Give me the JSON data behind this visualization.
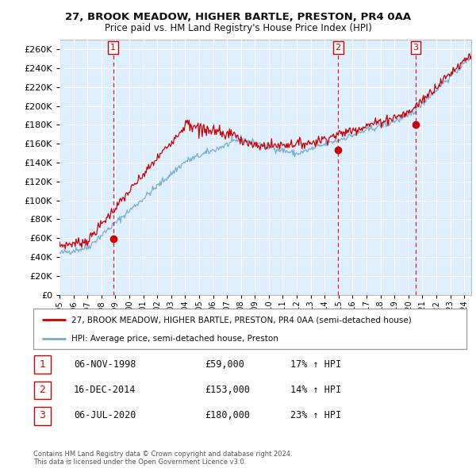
{
  "title1": "27, BROOK MEADOW, HIGHER BARTLE, PRESTON, PR4 0AA",
  "title2": "Price paid vs. HM Land Registry's House Price Index (HPI)",
  "legend_label1": "27, BROOK MEADOW, HIGHER BARTLE, PRESTON, PR4 0AA (semi-detached house)",
  "legend_label2": "HPI: Average price, semi-detached house, Preston",
  "footer": "Contains HM Land Registry data © Crown copyright and database right 2024.\nThis data is licensed under the Open Government Licence v3.0.",
  "sale_points": [
    {
      "label": "1",
      "date_num": 1998.85,
      "price": 59000
    },
    {
      "label": "2",
      "date_num": 2014.96,
      "price": 153000
    },
    {
      "label": "3",
      "date_num": 2020.51,
      "price": 180000
    }
  ],
  "sale_info": [
    {
      "num": "1",
      "date": "06-NOV-1998",
      "price": "£59,000",
      "hpi": "17% ↑ HPI"
    },
    {
      "num": "2",
      "date": "16-DEC-2014",
      "price": "£153,000",
      "hpi": "14% ↑ HPI"
    },
    {
      "num": "3",
      "date": "06-JUL-2020",
      "price": "£180,000",
      "hpi": "23% ↑ HPI"
    }
  ],
  "red_color": "#cc0000",
  "blue_color": "#7aadcc",
  "bg_color": "#ddeeff",
  "grid_color": "#ffffff",
  "fig_bg": "#ffffff",
  "ylim": [
    0,
    270000
  ],
  "yticks": [
    0,
    20000,
    40000,
    60000,
    80000,
    100000,
    120000,
    140000,
    160000,
    180000,
    200000,
    220000,
    240000,
    260000
  ],
  "xmin": 1995.0,
  "xmax": 2024.5
}
